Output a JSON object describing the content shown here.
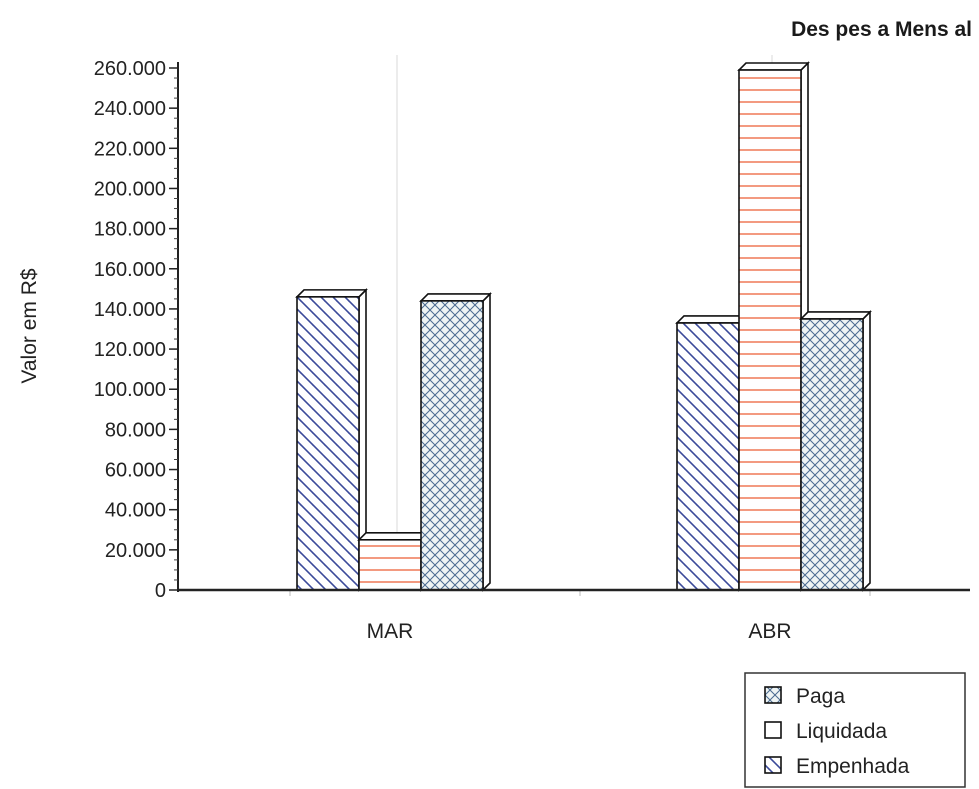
{
  "chart_data": {
    "type": "bar",
    "title": "Des pes a Mens al",
    "xlabel": "",
    "ylabel": "Valor em R$",
    "categories": [
      "MAR",
      "ABR"
    ],
    "yticks": [
      "0",
      "20.000",
      "40.000",
      "60.000",
      "80.000",
      "100.000",
      "120.000",
      "140.000",
      "160.000",
      "180.000",
      "200.000",
      "220.000",
      "240.000",
      "260.000"
    ],
    "ylim": [
      0,
      260000
    ],
    "series": [
      {
        "name": "Paga",
        "values": [
          146000,
          133000
        ],
        "color": "#3b4a9a",
        "pattern": "diag-back"
      },
      {
        "name": "Liquidada",
        "values": [
          25000,
          259000
        ],
        "color": "#f08060",
        "pattern": "horizontal"
      },
      {
        "name": "Empenhada",
        "values": [
          144000,
          135000
        ],
        "color": "#3b4a9a",
        "pattern": "crosshatch"
      }
    ],
    "grid": false,
    "legend": "bottom-right"
  }
}
